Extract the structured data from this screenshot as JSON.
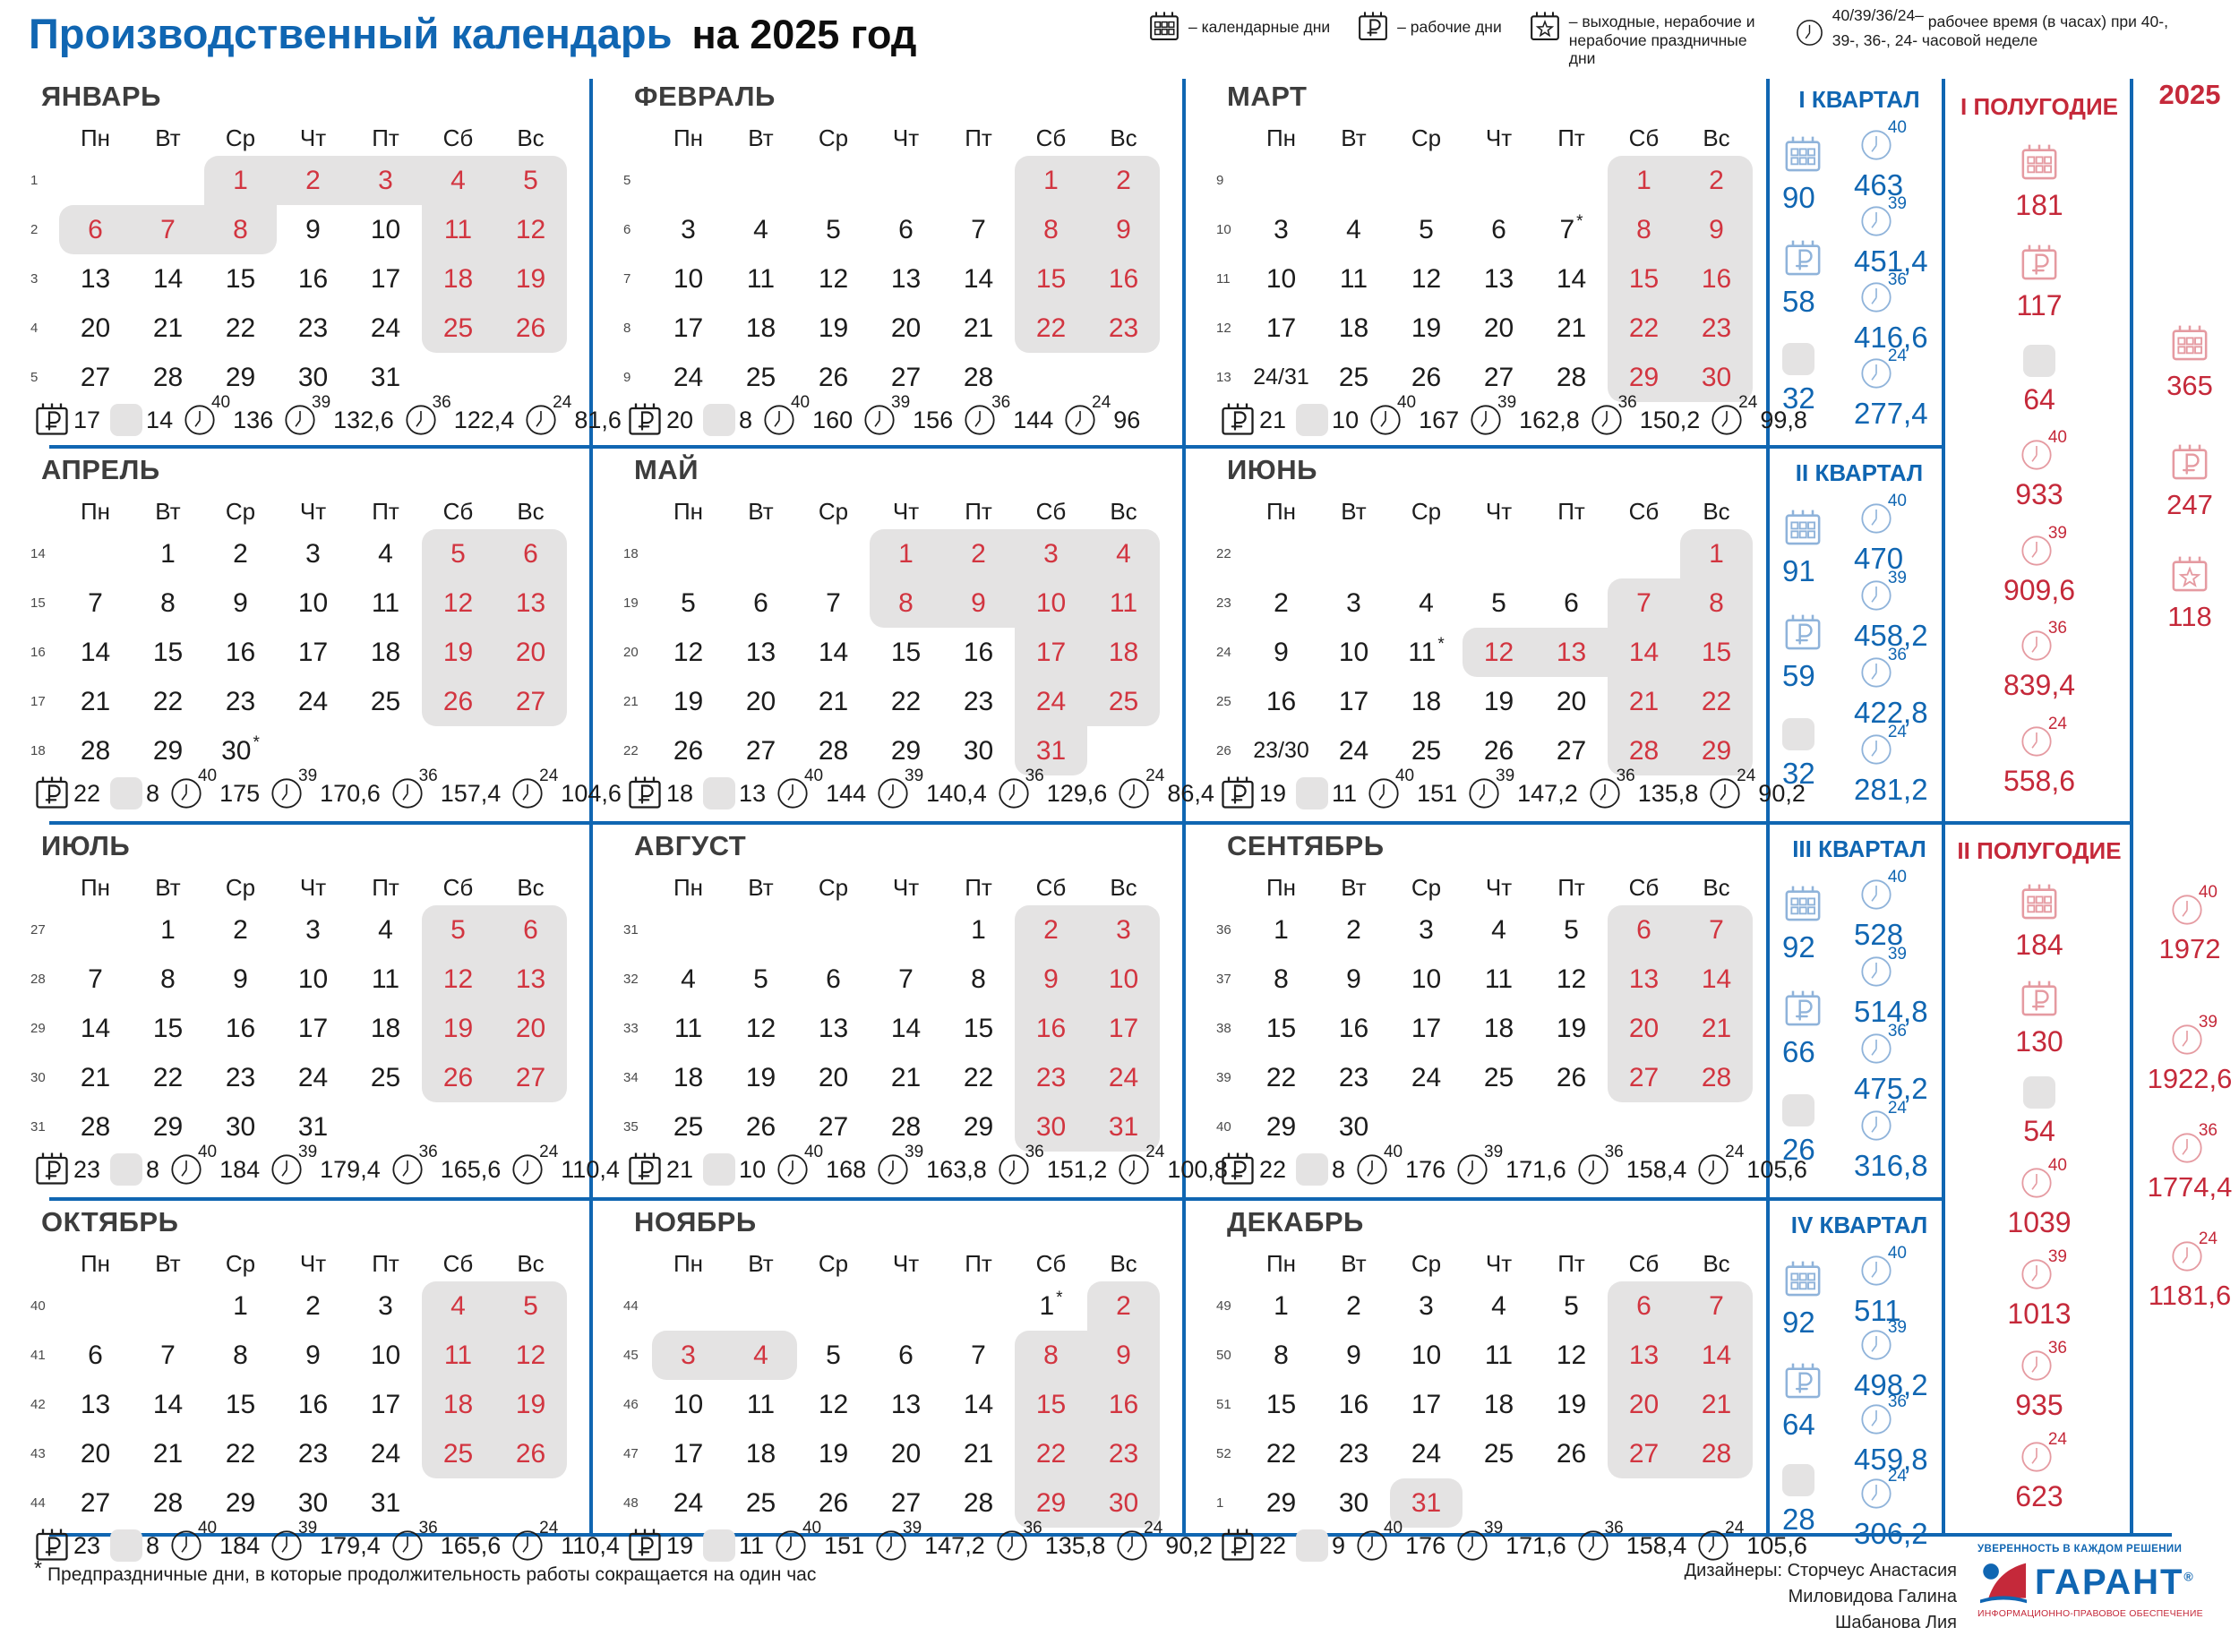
{
  "colors": {
    "blue": "#1066b2",
    "red": "#c5293a",
    "date_red": "#d23540",
    "gray": "#e4e3e3",
    "ink": "#1c1c1c",
    "light_blue": "#8fb3da",
    "light_red": "#e59aa1"
  },
  "title": {
    "blue": "Производственный календарь",
    "black": "на 2025 год"
  },
  "legend": [
    {
      "icon": "calendar-days-icon",
      "text": "– календарные дни"
    },
    {
      "icon": "working-days-icon",
      "text": "– рабочие дни"
    },
    {
      "icon": "holidays-icon",
      "text": "– выходные, нерабочие и нерабочие праздничные дни"
    },
    {
      "icon": "clock-icon",
      "sup": "40/39/36/24–",
      "text": "рабочее время (в часах) при 40-, 39-, 36-, 24- часовой неделе"
    }
  ],
  "day_headers": [
    "Пн",
    "Вт",
    "Ср",
    "Чт",
    "Пт",
    "Сб",
    "Вс"
  ],
  "months": [
    {
      "name": "ЯНВАРЬ",
      "weeks": [
        {
          "n": "1",
          "days": [
            "",
            "",
            "1rg",
            "2rg",
            "3rg",
            "4rg",
            "5rg"
          ]
        },
        {
          "n": "2",
          "days": [
            "6rg",
            "7rg",
            "8rg",
            "9",
            "10",
            "11rg",
            "12rg"
          ]
        },
        {
          "n": "3",
          "days": [
            "13",
            "14",
            "15",
            "16",
            "17",
            "18rg",
            "19rg"
          ]
        },
        {
          "n": "4",
          "days": [
            "20",
            "21",
            "22",
            "23",
            "24",
            "25rg",
            "26rg"
          ]
        },
        {
          "n": "5",
          "days": [
            "27",
            "28",
            "29",
            "30",
            "31",
            "",
            ""
          ]
        }
      ],
      "stats": {
        "work": "17",
        "off": "14",
        "h40": "136",
        "h39": "132,6",
        "h36": "122,4",
        "h24": "81,6"
      }
    },
    {
      "name": "ФЕВРАЛЬ",
      "weeks": [
        {
          "n": "5",
          "days": [
            "",
            "",
            "",
            "",
            "",
            "1rg",
            "2rg"
          ]
        },
        {
          "n": "6",
          "days": [
            "3",
            "4",
            "5",
            "6",
            "7",
            "8rg",
            "9rg"
          ]
        },
        {
          "n": "7",
          "days": [
            "10",
            "11",
            "12",
            "13",
            "14",
            "15rg",
            "16rg"
          ]
        },
        {
          "n": "8",
          "days": [
            "17",
            "18",
            "19",
            "20",
            "21",
            "22rg",
            "23rg"
          ]
        },
        {
          "n": "9",
          "days": [
            "24",
            "25",
            "26",
            "27",
            "28",
            "",
            ""
          ]
        }
      ],
      "stats": {
        "work": "20",
        "off": "8",
        "h40": "160",
        "h39": "156",
        "h36": "144",
        "h24": "96"
      }
    },
    {
      "name": "МАРТ",
      "weeks": [
        {
          "n": "9",
          "days": [
            "",
            "",
            "",
            "",
            "",
            "1rg",
            "2rg"
          ]
        },
        {
          "n": "10",
          "days": [
            "3",
            "4",
            "5",
            "6",
            "7s",
            "8rg",
            "9rg"
          ]
        },
        {
          "n": "11",
          "days": [
            "10",
            "11",
            "12",
            "13",
            "14",
            "15rg",
            "16rg"
          ]
        },
        {
          "n": "12",
          "days": [
            "17",
            "18",
            "19",
            "20",
            "21",
            "22rg",
            "23rg"
          ]
        },
        {
          "n": "13",
          "days": [
            "24/31",
            "25",
            "26",
            "27",
            "28",
            "29rg",
            "30rg"
          ]
        }
      ],
      "stats": {
        "work": "21",
        "off": "10",
        "h40": "167",
        "h39": "162,8",
        "h36": "150,2",
        "h24": "99,8"
      }
    },
    {
      "name": "АПРЕЛЬ",
      "weeks": [
        {
          "n": "14",
          "days": [
            "",
            "1",
            "2",
            "3",
            "4",
            "5rg",
            "6rg"
          ]
        },
        {
          "n": "15",
          "days": [
            "7",
            "8",
            "9",
            "10",
            "11",
            "12rg",
            "13rg"
          ]
        },
        {
          "n": "16",
          "days": [
            "14",
            "15",
            "16",
            "17",
            "18",
            "19rg",
            "20rg"
          ]
        },
        {
          "n": "17",
          "days": [
            "21",
            "22",
            "23",
            "24",
            "25",
            "26rg",
            "27rg"
          ]
        },
        {
          "n": "18",
          "days": [
            "28",
            "29",
            "30s",
            "",
            "",
            "",
            ""
          ]
        }
      ],
      "stats": {
        "work": "22",
        "off": "8",
        "h40": "175",
        "h39": "170,6",
        "h36": "157,4",
        "h24": "104,6"
      }
    },
    {
      "name": "МАЙ",
      "weeks": [
        {
          "n": "18",
          "days": [
            "",
            "",
            "",
            "1rg",
            "2rg",
            "3rg",
            "4rg"
          ]
        },
        {
          "n": "19",
          "days": [
            "5",
            "6",
            "7",
            "8rg",
            "9rg",
            "10rg",
            "11rg"
          ]
        },
        {
          "n": "20",
          "days": [
            "12",
            "13",
            "14",
            "15",
            "16",
            "17rg",
            "18rg"
          ]
        },
        {
          "n": "21",
          "days": [
            "19",
            "20",
            "21",
            "22",
            "23",
            "24rg",
            "25rg"
          ]
        },
        {
          "n": "22",
          "days": [
            "26",
            "27",
            "28",
            "29",
            "30",
            "31rg",
            ""
          ]
        }
      ],
      "stats": {
        "work": "18",
        "off": "13",
        "h40": "144",
        "h39": "140,4",
        "h36": "129,6",
        "h24": "86,4"
      }
    },
    {
      "name": "ИЮНЬ",
      "weeks": [
        {
          "n": "22",
          "days": [
            "",
            "",
            "",
            "",
            "",
            "",
            "1rg"
          ]
        },
        {
          "n": "23",
          "days": [
            "2",
            "3",
            "4",
            "5",
            "6",
            "7rg",
            "8rg"
          ]
        },
        {
          "n": "24",
          "days": [
            "9",
            "10",
            "11s",
            "12rg",
            "13rg",
            "14rg",
            "15rg"
          ]
        },
        {
          "n": "25",
          "days": [
            "16",
            "17",
            "18",
            "19",
            "20",
            "21rg",
            "22rg"
          ]
        },
        {
          "n": "26",
          "days": [
            "23/30",
            "24",
            "25",
            "26",
            "27",
            "28rg",
            "29rg"
          ]
        }
      ],
      "stats": {
        "work": "19",
        "off": "11",
        "h40": "151",
        "h39": "147,2",
        "h36": "135,8",
        "h24": "90,2"
      }
    },
    {
      "name": "ИЮЛЬ",
      "weeks": [
        {
          "n": "27",
          "days": [
            "",
            "1",
            "2",
            "3",
            "4",
            "5rg",
            "6rg"
          ]
        },
        {
          "n": "28",
          "days": [
            "7",
            "8",
            "9",
            "10",
            "11",
            "12rg",
            "13rg"
          ]
        },
        {
          "n": "29",
          "days": [
            "14",
            "15",
            "16",
            "17",
            "18",
            "19rg",
            "20rg"
          ]
        },
        {
          "n": "30",
          "days": [
            "21",
            "22",
            "23",
            "24",
            "25",
            "26rg",
            "27rg"
          ]
        },
        {
          "n": "31",
          "days": [
            "28",
            "29",
            "30",
            "31",
            "",
            "",
            ""
          ]
        }
      ],
      "stats": {
        "work": "23",
        "off": "8",
        "h40": "184",
        "h39": "179,4",
        "h36": "165,6",
        "h24": "110,4"
      }
    },
    {
      "name": "АВГУСТ",
      "weeks": [
        {
          "n": "31",
          "days": [
            "",
            "",
            "",
            "",
            "1",
            "2rg",
            "3rg"
          ]
        },
        {
          "n": "32",
          "days": [
            "4",
            "5",
            "6",
            "7",
            "8",
            "9rg",
            "10rg"
          ]
        },
        {
          "n": "33",
          "days": [
            "11",
            "12",
            "13",
            "14",
            "15",
            "16rg",
            "17rg"
          ]
        },
        {
          "n": "34",
          "days": [
            "18",
            "19",
            "20",
            "21",
            "22",
            "23rg",
            "24rg"
          ]
        },
        {
          "n": "35",
          "days": [
            "25",
            "26",
            "27",
            "28",
            "29",
            "30rg",
            "31rg"
          ]
        }
      ],
      "stats": {
        "work": "21",
        "off": "10",
        "h40": "168",
        "h39": "163,8",
        "h36": "151,2",
        "h24": "100,8"
      }
    },
    {
      "name": "СЕНТЯБРЬ",
      "weeks": [
        {
          "n": "36",
          "days": [
            "1",
            "2",
            "3",
            "4",
            "5",
            "6rg",
            "7rg"
          ]
        },
        {
          "n": "37",
          "days": [
            "8",
            "9",
            "10",
            "11",
            "12",
            "13rg",
            "14rg"
          ]
        },
        {
          "n": "38",
          "days": [
            "15",
            "16",
            "17",
            "18",
            "19",
            "20rg",
            "21rg"
          ]
        },
        {
          "n": "39",
          "days": [
            "22",
            "23",
            "24",
            "25",
            "26",
            "27rg",
            "28rg"
          ]
        },
        {
          "n": "40",
          "days": [
            "29",
            "30",
            "",
            "",
            "",
            "",
            ""
          ]
        }
      ],
      "stats": {
        "work": "22",
        "off": "8",
        "h40": "176",
        "h39": "171,6",
        "h36": "158,4",
        "h24": "105,6"
      }
    },
    {
      "name": "ОКТЯБРЬ",
      "weeks": [
        {
          "n": "40",
          "days": [
            "",
            "",
            "1",
            "2",
            "3",
            "4rg",
            "5rg"
          ]
        },
        {
          "n": "41",
          "days": [
            "6",
            "7",
            "8",
            "9",
            "10",
            "11rg",
            "12rg"
          ]
        },
        {
          "n": "42",
          "days": [
            "13",
            "14",
            "15",
            "16",
            "17",
            "18rg",
            "19rg"
          ]
        },
        {
          "n": "43",
          "days": [
            "20",
            "21",
            "22",
            "23",
            "24",
            "25rg",
            "26rg"
          ]
        },
        {
          "n": "44",
          "days": [
            "27",
            "28",
            "29",
            "30",
            "31",
            "",
            ""
          ]
        }
      ],
      "stats": {
        "work": "23",
        "off": "8",
        "h40": "184",
        "h39": "179,4",
        "h36": "165,6",
        "h24": "110,4"
      }
    },
    {
      "name": "НОЯБРЬ",
      "weeks": [
        {
          "n": "44",
          "days": [
            "",
            "",
            "",
            "",
            "",
            "1s",
            "2rg"
          ]
        },
        {
          "n": "45",
          "days": [
            "3rg",
            "4rg",
            "5",
            "6",
            "7",
            "8rg",
            "9rg"
          ]
        },
        {
          "n": "46",
          "days": [
            "10",
            "11",
            "12",
            "13",
            "14",
            "15rg",
            "16rg"
          ]
        },
        {
          "n": "47",
          "days": [
            "17",
            "18",
            "19",
            "20",
            "21",
            "22rg",
            "23rg"
          ]
        },
        {
          "n": "48",
          "days": [
            "24",
            "25",
            "26",
            "27",
            "28",
            "29rg",
            "30rg"
          ]
        }
      ],
      "stats": {
        "work": "19",
        "off": "11",
        "h40": "151",
        "h39": "147,2",
        "h36": "135,8",
        "h24": "90,2"
      }
    },
    {
      "name": "ДЕКАБРЬ",
      "weeks": [
        {
          "n": "49",
          "days": [
            "1",
            "2",
            "3",
            "4",
            "5",
            "6rg",
            "7rg"
          ]
        },
        {
          "n": "50",
          "days": [
            "8",
            "9",
            "10",
            "11",
            "12",
            "13rg",
            "14rg"
          ]
        },
        {
          "n": "51",
          "days": [
            "15",
            "16",
            "17",
            "18",
            "19",
            "20rg",
            "21rg"
          ]
        },
        {
          "n": "52",
          "days": [
            "22",
            "23",
            "24",
            "25",
            "26",
            "27rg",
            "28rg"
          ]
        },
        {
          "n": "1",
          "days": [
            "29",
            "30",
            "31rg",
            "",
            "",
            "",
            ""
          ]
        }
      ],
      "stats": {
        "work": "22",
        "off": "9",
        "h40": "176",
        "h39": "171,6",
        "h36": "158,4",
        "h24": "105,6"
      }
    }
  ],
  "quarters": [
    {
      "title": "I КВАРТАЛ",
      "calendar_days": "90",
      "working_days": "58",
      "days_off": "32",
      "h40": "463",
      "h39": "451,4",
      "h36": "416,6",
      "h24": "277,4"
    },
    {
      "title": "II КВАРТАЛ",
      "calendar_days": "91",
      "working_days": "59",
      "days_off": "32",
      "h40": "470",
      "h39": "458,2",
      "h36": "422,8",
      "h24": "281,2"
    },
    {
      "title": "III КВАРТАЛ",
      "calendar_days": "92",
      "working_days": "66",
      "days_off": "26",
      "h40": "528",
      "h39": "514,8",
      "h36": "475,2",
      "h24": "316,8"
    },
    {
      "title": "IV КВАРТАЛ",
      "calendar_days": "92",
      "working_days": "64",
      "days_off": "28",
      "h40": "511",
      "h39": "498,2",
      "h36": "459,8",
      "h24": "306,2"
    }
  ],
  "half_years": [
    {
      "title": "I ПОЛУГОДИЕ",
      "calendar_days": "181",
      "working_days": "117",
      "days_off": "64",
      "h40": "933",
      "h39": "909,6",
      "h36": "839,4",
      "h24": "558,6"
    },
    {
      "title": "II ПОЛУГОДИЕ",
      "calendar_days": "184",
      "working_days": "130",
      "days_off": "54",
      "h40": "1039",
      "h39": "1013",
      "h36": "935",
      "h24": "623"
    }
  ],
  "year": {
    "label": "2025",
    "calendar_days": "365",
    "working_days": "247",
    "holidays": "118",
    "h40": "1972",
    "h39": "1922,6",
    "h36": "1774,4",
    "h24": "1181,6"
  },
  "footer": {
    "asterisk": "*",
    "note": "Предпраздничные дни, в которые продолжительность работы сокращается на один час",
    "designers_lines": [
      "Дизайнеры: Сторчеус Анастасия",
      "Миловидова Галина",
      "Шабанова Лия"
    ],
    "brand": {
      "tagline": "УВЕРЕННОСТЬ В КАЖДОМ РЕШЕНИИ",
      "name": "ГАРАНТ",
      "reg": "®",
      "subtitle": "ИНФОРМАЦИОННО-ПРАВОВОЕ ОБЕСПЕЧЕНИЕ"
    }
  }
}
